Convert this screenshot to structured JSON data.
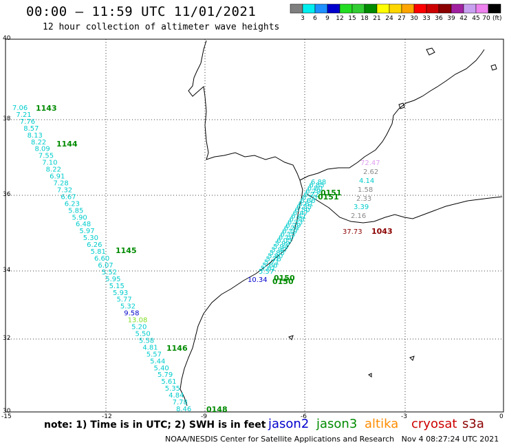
{
  "header": {
    "title": "00:00 – 11:59 UTC 11/01/2021",
    "subtitle": "12 hour collection of altimeter wave heights"
  },
  "colorbar": {
    "ticks": [
      "3",
      "6",
      "9",
      "12",
      "15",
      "18",
      "21",
      "24",
      "27",
      "30",
      "33",
      "36",
      "39",
      "42",
      "45",
      "70"
    ],
    "unit": "(ft)",
    "colors": [
      "#7f7f7f",
      "#00eeee",
      "#1e90ff",
      "#0000cd",
      "#22dd22",
      "#32cd32",
      "#008b00",
      "#ffff00",
      "#ffd700",
      "#ffa500",
      "#ff0000",
      "#cd0000",
      "#8b0000",
      "#a020a0",
      "#c8a0f0",
      "#ee82ee",
      "#000000"
    ]
  },
  "axes": {
    "lat_labels": [
      "40",
      "38",
      "36",
      "34",
      "32",
      "30"
    ],
    "lon_labels": [
      "-15",
      "-12",
      "-9",
      "-6",
      "-3",
      "0"
    ]
  },
  "tracks": {
    "west_values": [
      "7.06",
      "7.21",
      "7.76",
      "8.57",
      "8.13",
      "8.22",
      "8.09",
      "7.55",
      "7.10",
      "8.22",
      "6.91",
      "7.28",
      "7.32",
      "6.67",
      "6.23",
      "5.85",
      "5.90",
      "6.48",
      "5.97",
      "5.30",
      "6.26",
      "5.81",
      "6.60",
      "6.07",
      "5.52",
      "5.95",
      "5.15",
      "5.93",
      "5.77",
      "5.32",
      "9.58",
      "13.08",
      "5.20",
      "5.50",
      "5.58",
      "4.81",
      "5.57",
      "5.44",
      "5.40",
      "5.79",
      "5.61",
      "5.35",
      "4.84",
      "7.78",
      "8.46"
    ],
    "west_time_labels": [
      "1143",
      "1144",
      "1145",
      "1146",
      "0148"
    ],
    "east_values": [
      "6.88",
      "6.85",
      "6.80",
      "6.79",
      "6.72",
      "6.70",
      "6.66",
      "6.61",
      "6.55",
      "6.50",
      "6.47",
      "6.41",
      "6.38",
      "6.33",
      "6.29",
      "6.24",
      "6.19",
      "6.15",
      "6.10",
      "6.05",
      "5.99",
      "5.94",
      "5.90",
      "5.85",
      "5.80",
      "5.76",
      "5.71",
      "5.66",
      "5.61",
      "5.57"
    ],
    "east_start_value": "10.34",
    "east_time_labels": [
      "0151",
      "0151",
      "0150",
      "0150"
    ],
    "med_values": [
      "72.47",
      "2.62",
      "4.14",
      "1.58",
      "2.33",
      "3.39",
      "2.16",
      "37.73"
    ],
    "med_time_label": "1043"
  },
  "footer": {
    "note": "note: 1) Time is in UTC; 2) SWH is in feet",
    "satellites": [
      {
        "name": "jason2",
        "color": "#0000cd"
      },
      {
        "name": "jason3",
        "color": "#008b00"
      },
      {
        "name": "altika",
        "color": "#ff8c00"
      },
      {
        "name": "cryosat",
        "color": "#cd0000"
      },
      {
        "name": "s3a",
        "color": "#8b0000"
      }
    ],
    "credit": "NOAA/NESDIS Center for Satellite Applications and Research",
    "timestamp": "Nov  4 08:27:24 UTC 2021"
  }
}
